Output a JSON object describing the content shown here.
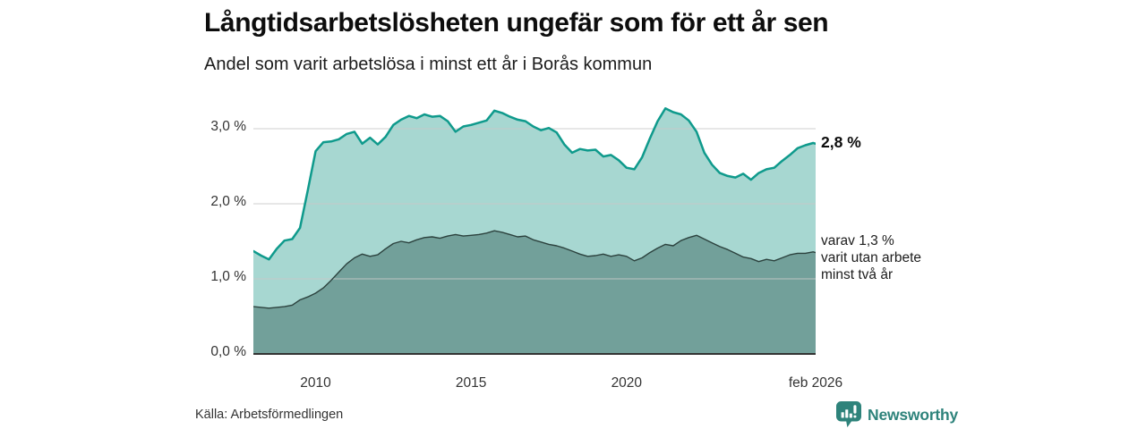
{
  "chart_data": {
    "type": "area",
    "title": "Långtidsarbetslösheten ungefär som för ett år sen",
    "subtitle": "Andel som varit arbetslösa i minst ett år i Borås kommun",
    "x": [
      2008,
      2008.25,
      2008.5,
      2008.75,
      2009,
      2009.25,
      2009.5,
      2009.75,
      2010,
      2010.25,
      2010.5,
      2010.75,
      2011,
      2011.25,
      2011.5,
      2011.75,
      2012,
      2012.25,
      2012.5,
      2012.75,
      2013,
      2013.25,
      2013.5,
      2013.75,
      2014,
      2014.25,
      2014.5,
      2014.75,
      2015,
      2015.25,
      2015.5,
      2015.75,
      2016,
      2016.25,
      2016.5,
      2016.75,
      2017,
      2017.25,
      2017.5,
      2017.75,
      2018,
      2018.25,
      2018.5,
      2018.75,
      2019,
      2019.25,
      2019.5,
      2019.75,
      2020,
      2020.25,
      2020.5,
      2020.75,
      2021,
      2021.25,
      2021.5,
      2021.75,
      2022,
      2022.25,
      2022.5,
      2022.75,
      2023,
      2023.25,
      2023.5,
      2023.75,
      2024,
      2024.25,
      2024.5,
      2024.75,
      2025,
      2025.25,
      2025.5,
      2025.75,
      2026,
      2026.08
    ],
    "series": [
      {
        "name": "Andel som varit arbetslösa i minst ett år",
        "values": [
          1.37,
          1.31,
          1.26,
          1.4,
          1.51,
          1.53,
          1.68,
          2.18,
          2.7,
          2.82,
          2.83,
          2.86,
          2.93,
          2.96,
          2.8,
          2.88,
          2.79,
          2.89,
          3.05,
          3.12,
          3.17,
          3.14,
          3.19,
          3.16,
          3.17,
          3.1,
          2.96,
          3.03,
          3.05,
          3.08,
          3.11,
          3.24,
          3.21,
          3.16,
          3.12,
          3.1,
          3.03,
          2.98,
          3.01,
          2.95,
          2.79,
          2.68,
          2.73,
          2.71,
          2.72,
          2.63,
          2.65,
          2.58,
          2.48,
          2.46,
          2.62,
          2.87,
          3.1,
          3.27,
          3.22,
          3.19,
          3.11,
          2.96,
          2.68,
          2.52,
          2.41,
          2.37,
          2.35,
          2.4,
          2.32,
          2.41,
          2.46,
          2.48,
          2.57,
          2.65,
          2.74,
          2.78,
          2.81,
          2.8
        ],
        "fill": "#a7d7d1",
        "stroke": "#0f9a8c",
        "stroke_width": 2.5,
        "end_label": "2,8 %"
      },
      {
        "name": "varav utan arbete minst två år",
        "values": [
          0.63,
          0.62,
          0.61,
          0.62,
          0.63,
          0.65,
          0.72,
          0.76,
          0.81,
          0.88,
          0.98,
          1.09,
          1.2,
          1.28,
          1.33,
          1.3,
          1.32,
          1.4,
          1.47,
          1.5,
          1.48,
          1.52,
          1.55,
          1.56,
          1.54,
          1.57,
          1.59,
          1.57,
          1.58,
          1.59,
          1.61,
          1.64,
          1.62,
          1.59,
          1.56,
          1.57,
          1.52,
          1.49,
          1.46,
          1.44,
          1.41,
          1.37,
          1.33,
          1.3,
          1.31,
          1.33,
          1.3,
          1.32,
          1.3,
          1.24,
          1.28,
          1.35,
          1.41,
          1.46,
          1.44,
          1.51,
          1.55,
          1.58,
          1.53,
          1.48,
          1.43,
          1.39,
          1.34,
          1.29,
          1.27,
          1.23,
          1.26,
          1.24,
          1.28,
          1.32,
          1.34,
          1.34,
          1.36,
          1.35
        ],
        "fill": "#72a09a",
        "stroke": "#2c423e",
        "stroke_width": 1.4,
        "end_label_lines": [
          "varav 1,3 %",
          "varit utan arbete",
          "minst två år"
        ]
      }
    ],
    "yticks": [
      {
        "label": "0,0 %",
        "value": 0
      },
      {
        "label": "1,0 %",
        "value": 1
      },
      {
        "label": "2,0 %",
        "value": 2
      },
      {
        "label": "3,0 %",
        "value": 3
      }
    ],
    "xticks": [
      {
        "label": "2010",
        "x": 2010
      },
      {
        "label": "2015",
        "x": 2015
      },
      {
        "label": "2020",
        "x": 2020
      },
      {
        "label": "feb 2026",
        "x": 2026.08
      }
    ],
    "xlim": [
      2008,
      2026.08
    ],
    "ylim": [
      0,
      3.45
    ],
    "grid": true,
    "grid_color": "#c9c9c9",
    "baseline_color": "#333333",
    "legend_position": "right-annotations"
  },
  "footer": {
    "source": "Källa: Arbetsförmedlingen",
    "brand": {
      "name": "Newsworthy",
      "color": "#2e837b",
      "icon": "newsworthy-speech-bubble-bar-chart-icon"
    }
  }
}
